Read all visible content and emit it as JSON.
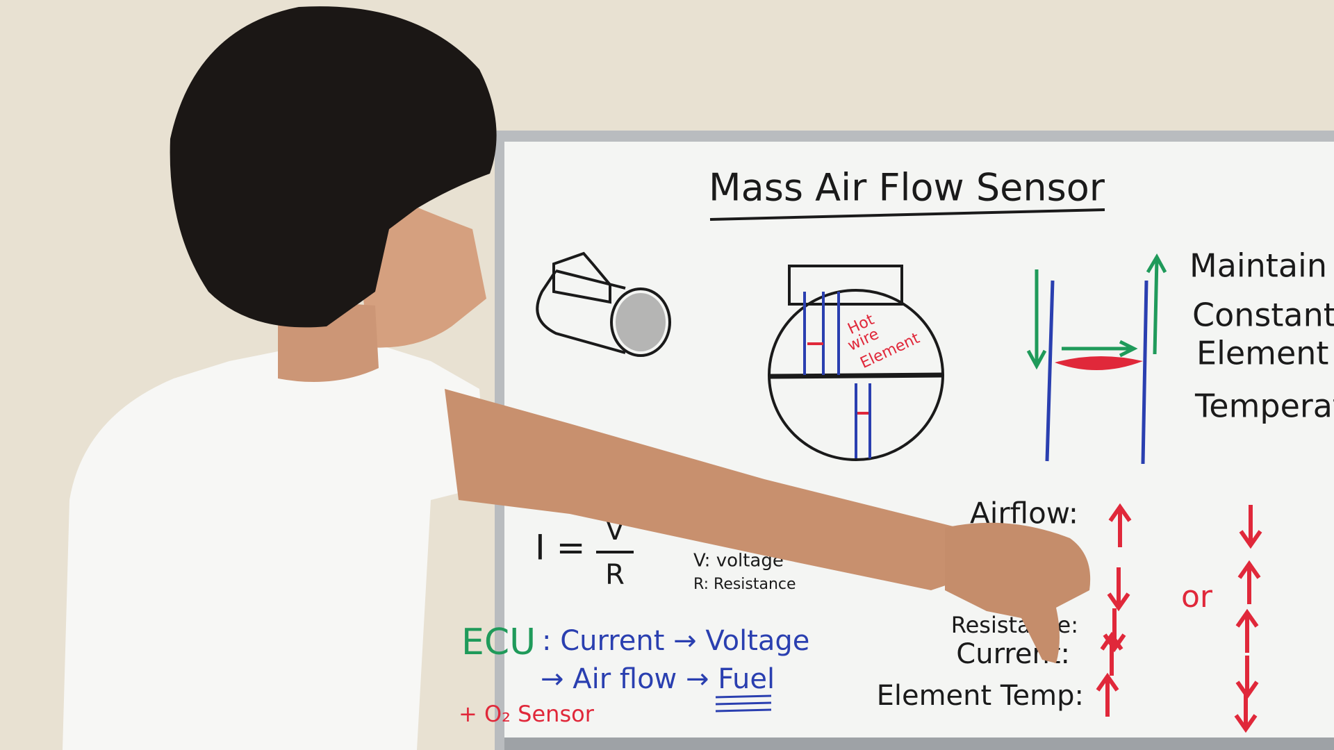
{
  "whiteboard": {
    "title": "Mass Air Flow Sensor",
    "diagram_label": [
      "Hot",
      "wire",
      "Element"
    ],
    "note_lines": [
      "Maintain",
      "Constant",
      "Element",
      "Temperature"
    ],
    "formula": {
      "lhs": "I =",
      "numerator": "V",
      "denominator": "R"
    },
    "legend": [
      "V: voltage",
      "R: Resistance"
    ],
    "ecu": {
      "label": "ECU",
      "line1": ": Current → Voltage",
      "line2": "→ Air flow → Fuel",
      "extra": "+ O₂ Sensor"
    },
    "effects": {
      "rows": [
        "Airflow:",
        "Resistance:",
        "Current:",
        "Element Temp:"
      ],
      "separator": "or"
    }
  }
}
